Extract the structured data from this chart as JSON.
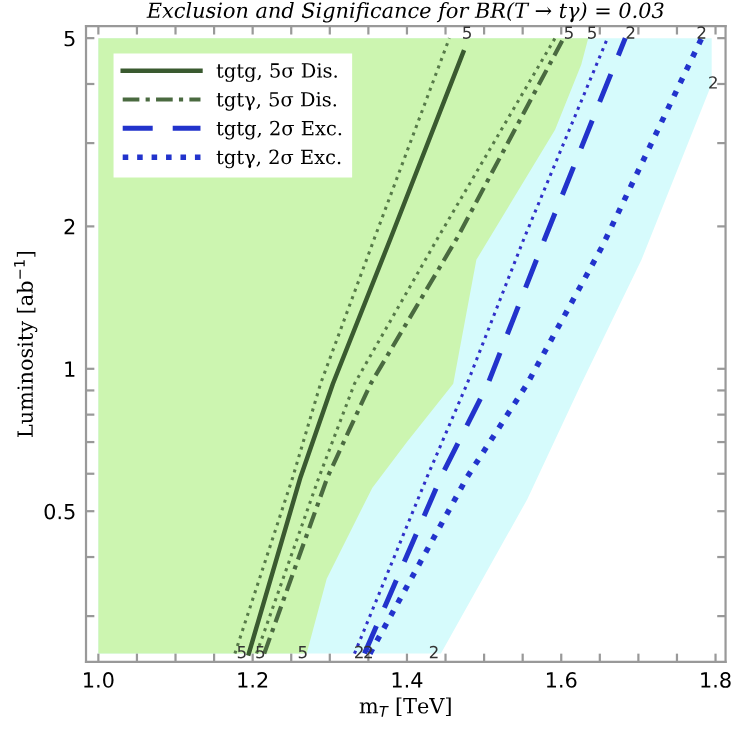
{
  "chart_data": {
    "type": "line",
    "title": "Exclusion and Significance for BR(T → tγ) = 0.03",
    "xlabel": "m$_{T}$ [TeV]",
    "ylabel": "Luminosity [ab$^{−1}$]",
    "log": "y",
    "xlim": [
      0.984,
      1.813
    ],
    "ylim": [
      0.24,
      5.3
    ],
    "xticks": [
      {
        "value": 1.0,
        "label": "1.0"
      },
      {
        "value": 1.05,
        "label": null
      },
      {
        "value": 1.1,
        "label": null
      },
      {
        "value": 1.15,
        "label": null
      },
      {
        "value": 1.2,
        "label": "1.2"
      },
      {
        "value": 1.25,
        "label": null
      },
      {
        "value": 1.3,
        "label": null
      },
      {
        "value": 1.35,
        "label": null
      },
      {
        "value": 1.4,
        "label": "1.4"
      },
      {
        "value": 1.45,
        "label": null
      },
      {
        "value": 1.5,
        "label": null
      },
      {
        "value": 1.55,
        "label": null
      },
      {
        "value": 1.6,
        "label": "1.6"
      },
      {
        "value": 1.65,
        "label": null
      },
      {
        "value": 1.7,
        "label": null
      },
      {
        "value": 1.75,
        "label": null
      },
      {
        "value": 1.8,
        "label": "1.8"
      }
    ],
    "yticks": [
      {
        "value": 0.3,
        "label": null
      },
      {
        "value": 0.4,
        "label": null
      },
      0.5,
      {
        "value": 0.6,
        "label": null
      },
      {
        "value": 0.7,
        "label": null
      },
      {
        "value": 0.8,
        "label": null
      },
      {
        "value": 0.9,
        "label": null
      },
      1,
      2,
      {
        "value": 3,
        "label": null
      },
      {
        "value": 4,
        "label": null
      },
      5
    ],
    "grid": false,
    "legend": "top left",
    "series": [
      {
        "type": "area",
        "color": "#d6fbfc",
        "x": [
          1.0,
          1.0,
          1.795,
          1.795,
          1.704,
          1.626,
          1.556,
          1.444
        ],
        "values": [
          0.25,
          5,
          5,
          4.0,
          1.7,
          0.93,
          0.53,
          0.25
        ]
      },
      {
        "type": "area",
        "color": "#ccf5b0",
        "x": [
          1.0,
          1.0,
          1.635,
          1.626,
          1.592,
          1.49,
          1.46,
          1.4,
          1.355,
          1.296,
          1.27
        ],
        "values": [
          0.25,
          5,
          5,
          4.4,
          3.2,
          1.7,
          0.93,
          0.7,
          0.56,
          0.36,
          0.25
        ]
      },
      {
        "type": "line",
        "color": "#567a48",
        "line_style": "dotted",
        "x": [
          1.177,
          1.252,
          1.288,
          1.358,
          1.455
        ],
        "values": [
          0.25,
          0.59,
          0.93,
          1.89,
          5
        ]
      },
      {
        "type": "line",
        "color": "#567a48",
        "line_style": "dotted",
        "x": [
          1.205,
          1.286,
          1.332,
          1.44,
          1.592
        ],
        "values": [
          0.25,
          0.59,
          0.93,
          1.89,
          5
        ]
      },
      {
        "type": "line",
        "color": "#3030c8",
        "line_style": "dotted",
        "x": [
          1.332,
          1.426,
          1.478,
          1.552,
          1.66
        ],
        "values": [
          0.25,
          0.59,
          0.93,
          1.89,
          5
        ]
      },
      {
        "type": "line",
        "name": "tgtg, 5σ Dis.",
        "color": "#3a5a30",
        "line_style": "solid",
        "x": [
          1.195,
          1.262,
          1.304,
          1.379,
          1.473
        ],
        "values": [
          0.25,
          0.59,
          0.93,
          1.89,
          4.67
        ]
      },
      {
        "type": "line",
        "name": "tgtγ, 5σ Dis.",
        "color": "#4a6a40",
        "line_style": "dashdot",
        "x": [
          1.215,
          1.297,
          1.353,
          1.465,
          1.603
        ],
        "values": [
          0.25,
          0.59,
          0.93,
          1.89,
          5
        ]
      },
      {
        "type": "line",
        "name": "tgtg, 2σ Exc.",
        "color": "#2233cc",
        "line_style": "dashed",
        "x": [
          1.345,
          1.444,
          1.505,
          1.579,
          1.683
        ],
        "values": [
          0.25,
          0.59,
          0.93,
          1.89,
          5
        ]
      },
      {
        "type": "line",
        "name": "tgtγ, 2σ Exc.",
        "color": "#2233cc",
        "line_style": "dotted",
        "x": [
          1.352,
          1.478,
          1.556,
          1.652,
          1.782
        ],
        "values": [
          0.25,
          0.59,
          0.93,
          1.8,
          5
        ]
      }
    ],
    "annotations": [
      {
        "text": "5",
        "x": 1.478,
        "y": 5.1
      },
      {
        "text": "5",
        "x": 1.61,
        "y": 5.1
      },
      {
        "text": "5",
        "x": 1.64,
        "y": 5.1
      },
      {
        "text": "2",
        "x": 1.69,
        "y": 5.1
      },
      {
        "text": "2",
        "x": 1.782,
        "y": 5.1
      },
      {
        "text": "2",
        "x": 1.797,
        "y": 4.0
      },
      {
        "text": "5",
        "x": 1.186,
        "y": 0.25
      },
      {
        "text": "5",
        "x": 1.21,
        "y": 0.25
      },
      {
        "text": "5",
        "x": 1.265,
        "y": 0.25
      },
      {
        "text": "2",
        "x": 1.338,
        "y": 0.25
      },
      {
        "text": "2",
        "x": 1.35,
        "y": 0.25
      },
      {
        "text": "2",
        "x": 1.435,
        "y": 0.25
      }
    ]
  }
}
